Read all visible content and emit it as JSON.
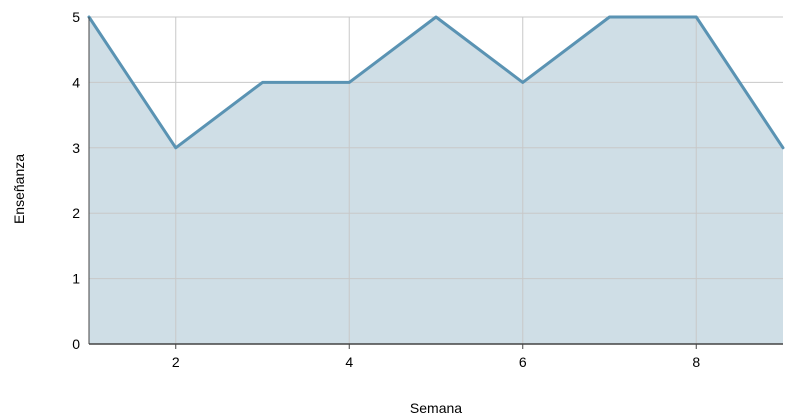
{
  "chart_data": {
    "type": "area",
    "title": "",
    "xlabel": "Semana",
    "ylabel": "Enseñanza",
    "x": [
      1,
      2,
      3,
      4,
      5,
      6,
      7,
      8,
      9
    ],
    "series": [
      {
        "values": [
          5,
          3,
          4,
          4,
          5,
          4,
          5,
          5,
          3
        ]
      }
    ],
    "xlim": [
      1,
      9
    ],
    "ylim": [
      0,
      5
    ],
    "xticks": [
      2,
      4,
      6,
      8
    ],
    "yticks": [
      0,
      1,
      2,
      3,
      4,
      5
    ],
    "grid": true,
    "legend": "none",
    "colors": {
      "line": "#5a93b3",
      "fill": "#cfdee6",
      "grid": "#c8c8c8",
      "axis": "#444444"
    }
  }
}
